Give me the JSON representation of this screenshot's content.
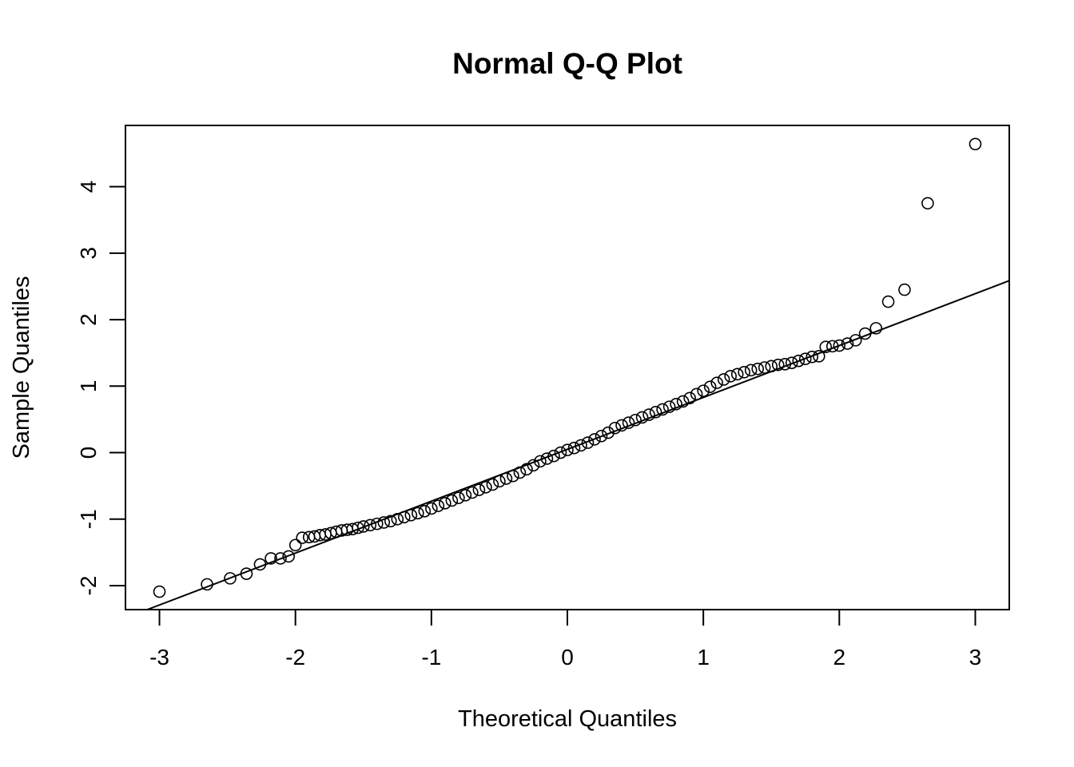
{
  "chart_data": {
    "type": "scatter",
    "title": "Normal Q-Q Plot",
    "xlabel": "Theoretical Quantiles",
    "ylabel": "Sample Quantiles",
    "xlim": [
      -3.25,
      3.25
    ],
    "ylim": [
      -2.36,
      4.92
    ],
    "xticks": [
      -3,
      -2,
      -1,
      0,
      1,
      2,
      3
    ],
    "xtick_labels": [
      "-3",
      "-2",
      "-1",
      "0",
      "1",
      "2",
      "3"
    ],
    "yticks": [
      -2,
      -1,
      0,
      1,
      2,
      3,
      4
    ],
    "ytick_labels": [
      "-2",
      "-1",
      "0",
      "1",
      "2",
      "3",
      "4"
    ],
    "grid": false,
    "marker": "open-circle",
    "reference_line": {
      "intercept": 0.05,
      "slope": 0.78
    },
    "points": [
      [
        -3.0,
        -2.09
      ],
      [
        -2.65,
        -1.98
      ],
      [
        -2.48,
        -1.89
      ],
      [
        -2.36,
        -1.82
      ],
      [
        -2.26,
        -1.68
      ],
      [
        -2.18,
        -1.59
      ],
      [
        -2.11,
        -1.59
      ],
      [
        -2.05,
        -1.56
      ],
      [
        -2.0,
        -1.39
      ],
      [
        -1.95,
        -1.28
      ],
      [
        -1.9,
        -1.27
      ],
      [
        -1.86,
        -1.26
      ],
      [
        -1.82,
        -1.24
      ],
      [
        -1.78,
        -1.23
      ],
      [
        -1.74,
        -1.21
      ],
      [
        -1.7,
        -1.19
      ],
      [
        -1.66,
        -1.17
      ],
      [
        -1.62,
        -1.16
      ],
      [
        -1.58,
        -1.15
      ],
      [
        -1.54,
        -1.13
      ],
      [
        -1.5,
        -1.11
      ],
      [
        -1.45,
        -1.09
      ],
      [
        -1.4,
        -1.07
      ],
      [
        -1.35,
        -1.05
      ],
      [
        -1.3,
        -1.03
      ],
      [
        -1.25,
        -1.0
      ],
      [
        -1.2,
        -0.97
      ],
      [
        -1.15,
        -0.94
      ],
      [
        -1.1,
        -0.91
      ],
      [
        -1.05,
        -0.88
      ],
      [
        -1.0,
        -0.84
      ],
      [
        -0.95,
        -0.8
      ],
      [
        -0.9,
        -0.76
      ],
      [
        -0.85,
        -0.72
      ],
      [
        -0.8,
        -0.68
      ],
      [
        -0.75,
        -0.64
      ],
      [
        -0.7,
        -0.6
      ],
      [
        -0.65,
        -0.56
      ],
      [
        -0.6,
        -0.52
      ],
      [
        -0.55,
        -0.48
      ],
      [
        -0.5,
        -0.43
      ],
      [
        -0.45,
        -0.39
      ],
      [
        -0.4,
        -0.35
      ],
      [
        -0.35,
        -0.3
      ],
      [
        -0.3,
        -0.25
      ],
      [
        -0.25,
        -0.19
      ],
      [
        -0.2,
        -0.13
      ],
      [
        -0.15,
        -0.09
      ],
      [
        -0.1,
        -0.05
      ],
      [
        -0.05,
        0.0
      ],
      [
        0.0,
        0.04
      ],
      [
        0.05,
        0.07
      ],
      [
        0.1,
        0.11
      ],
      [
        0.15,
        0.15
      ],
      [
        0.2,
        0.2
      ],
      [
        0.25,
        0.25
      ],
      [
        0.3,
        0.3
      ],
      [
        0.35,
        0.37
      ],
      [
        0.4,
        0.41
      ],
      [
        0.45,
        0.45
      ],
      [
        0.5,
        0.49
      ],
      [
        0.55,
        0.53
      ],
      [
        0.6,
        0.57
      ],
      [
        0.65,
        0.61
      ],
      [
        0.7,
        0.65
      ],
      [
        0.75,
        0.69
      ],
      [
        0.8,
        0.73
      ],
      [
        0.85,
        0.77
      ],
      [
        0.9,
        0.82
      ],
      [
        0.95,
        0.88
      ],
      [
        1.0,
        0.93
      ],
      [
        1.05,
        0.99
      ],
      [
        1.1,
        1.05
      ],
      [
        1.15,
        1.1
      ],
      [
        1.2,
        1.15
      ],
      [
        1.25,
        1.18
      ],
      [
        1.3,
        1.21
      ],
      [
        1.35,
        1.24
      ],
      [
        1.4,
        1.26
      ],
      [
        1.45,
        1.28
      ],
      [
        1.5,
        1.3
      ],
      [
        1.55,
        1.32
      ],
      [
        1.6,
        1.33
      ],
      [
        1.65,
        1.35
      ],
      [
        1.7,
        1.38
      ],
      [
        1.75,
        1.41
      ],
      [
        1.8,
        1.44
      ],
      [
        1.85,
        1.45
      ],
      [
        1.9,
        1.59
      ],
      [
        1.95,
        1.6
      ],
      [
        2.0,
        1.61
      ],
      [
        2.06,
        1.64
      ],
      [
        2.12,
        1.69
      ],
      [
        2.19,
        1.79
      ],
      [
        2.27,
        1.87
      ],
      [
        2.36,
        2.27
      ],
      [
        2.48,
        2.45
      ],
      [
        2.65,
        3.75
      ],
      [
        3.0,
        4.64
      ]
    ]
  }
}
